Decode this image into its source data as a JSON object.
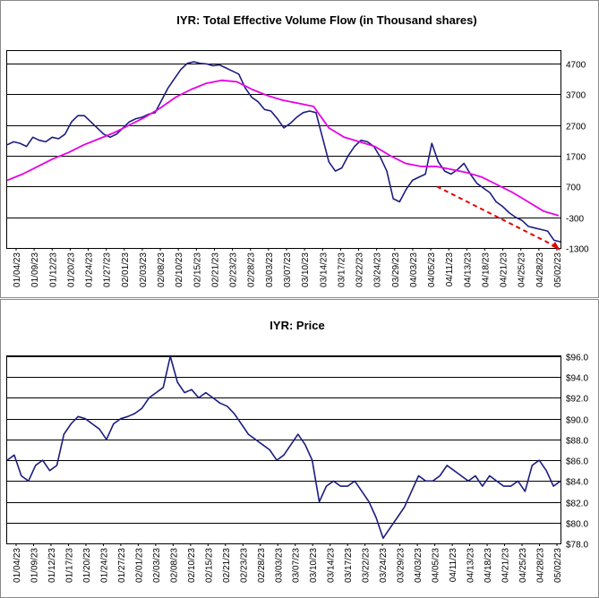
{
  "chart_data": [
    {
      "type": "line",
      "title": "IYR: Total Effective Volume Flow (in Thousand shares)",
      "xlabel": "",
      "ylabel": "",
      "ylim": [
        -1300,
        5100
      ],
      "yticks": [
        4700,
        3700,
        2700,
        1700,
        700,
        -300,
        -1300
      ],
      "grid": true,
      "x_tick_labels": [
        "01/04/23",
        "01/09/23",
        "01/12/23",
        "01/20/23",
        "01/24/23",
        "01/27/23",
        "02/01/23",
        "02/03/23",
        "02/08/23",
        "02/10/23",
        "02/15/23",
        "02/21/23",
        "02/23/23",
        "02/28/23",
        "03/03/23",
        "03/07/23",
        "03/10/23",
        "03/14/23",
        "03/17/23",
        "03/22/23",
        "03/24/23",
        "03/29/23",
        "04/03/23",
        "04/05/23",
        "04/11/23",
        "04/13/23",
        "04/18/23",
        "04/21/23",
        "04/25/23",
        "04/28/23",
        "05/02/23"
      ],
      "series": [
        {
          "role": "volume-flow",
          "color": "#1c1c80",
          "values": [
            2050,
            2150,
            2100,
            2000,
            2300,
            2200,
            2150,
            2300,
            2250,
            2400,
            2800,
            3000,
            3000,
            2800,
            2600,
            2400,
            2300,
            2400,
            2600,
            2800,
            2900,
            2950,
            3050,
            3100,
            3500,
            3900,
            4200,
            4500,
            4700,
            4750,
            4700,
            4680,
            4620,
            4650,
            4550,
            4450,
            4350,
            3900,
            3600,
            3450,
            3200,
            3150,
            2900,
            2600,
            2750,
            2950,
            3100,
            3150,
            3100,
            2300,
            1500,
            1200,
            1300,
            1700,
            2000,
            2200,
            2150,
            2000,
            1650,
            1200,
            300,
            200,
            600,
            900,
            1000,
            1100,
            2100,
            1500,
            1200,
            1100,
            1250,
            1450,
            1100,
            800,
            650,
            500,
            200,
            50,
            -150,
            -300,
            -400,
            -600,
            -650,
            -700,
            -750,
            -1050,
            -1100
          ]
        },
        {
          "role": "moving-average",
          "color": "#e600e6",
          "values": [
            900,
            1100,
            1350,
            1600,
            1800,
            2050,
            2250,
            2450,
            2700,
            2950,
            3250,
            3600,
            3850,
            4050,
            4150,
            4100,
            3850,
            3650,
            3500,
            3400,
            3300,
            2600,
            2300,
            2150,
            2000,
            1700,
            1450,
            1350,
            1350,
            1250,
            1150,
            1000,
            750,
            500,
            200,
            -100,
            -250
          ]
        },
        {
          "role": "trend-line",
          "color": "#e60000",
          "values": [
            700,
            -1300
          ]
        }
      ]
    },
    {
      "type": "line",
      "title": "IYR: Price",
      "xlabel": "",
      "ylabel": "",
      "ylim": [
        78,
        96
      ],
      "yticks": [
        "$96.0",
        "$94.0",
        "$92.0",
        "$90.0",
        "$88.0",
        "$86.0",
        "$84.0",
        "$82.0",
        "$80.0",
        "$78.0"
      ],
      "grid": true,
      "x_tick_labels": [
        "01/04/23",
        "01/09/23",
        "01/12/23",
        "01/17/23",
        "01/20/23",
        "01/24/23",
        "01/27/23",
        "02/01/23",
        "02/03/23",
        "02/08/23",
        "02/10/23",
        "02/15/23",
        "02/21/23",
        "02/23/23",
        "02/28/23",
        "03/03/23",
        "03/07/23",
        "03/10/23",
        "03/14/23",
        "03/17/23",
        "03/22/23",
        "03/24/23",
        "03/29/23",
        "04/03/23",
        "04/05/23",
        "04/11/23",
        "04/13/23",
        "04/18/23",
        "04/21/23",
        "04/25/23",
        "04/28/23",
        "05/02/23"
      ],
      "series": [
        {
          "role": "price",
          "color": "#1c1c80",
          "values": [
            86.0,
            86.5,
            84.5,
            84.0,
            85.5,
            86.0,
            85.0,
            85.5,
            88.5,
            89.5,
            90.2,
            90.0,
            89.5,
            89.0,
            88.0,
            89.5,
            90.0,
            90.2,
            90.5,
            91.0,
            92.0,
            92.5,
            93.0,
            96.0,
            93.5,
            92.5,
            92.8,
            92.0,
            92.5,
            92.0,
            91.5,
            91.2,
            90.5,
            89.5,
            88.5,
            88.0,
            87.5,
            87.0,
            86.0,
            86.5,
            87.5,
            88.5,
            87.5,
            86.0,
            82.0,
            83.5,
            84.0,
            83.5,
            83.5,
            84.0,
            83.0,
            82.0,
            80.5,
            78.5,
            79.5,
            80.5,
            81.5,
            83.0,
            84.5,
            84.0,
            84.0,
            84.5,
            85.5,
            85.0,
            84.5,
            84.0,
            84.5,
            83.5,
            84.5,
            84.0,
            83.5,
            83.5,
            84.0,
            83.0,
            85.5,
            86.0,
            85.0,
            83.5,
            84.0
          ]
        }
      ]
    }
  ]
}
